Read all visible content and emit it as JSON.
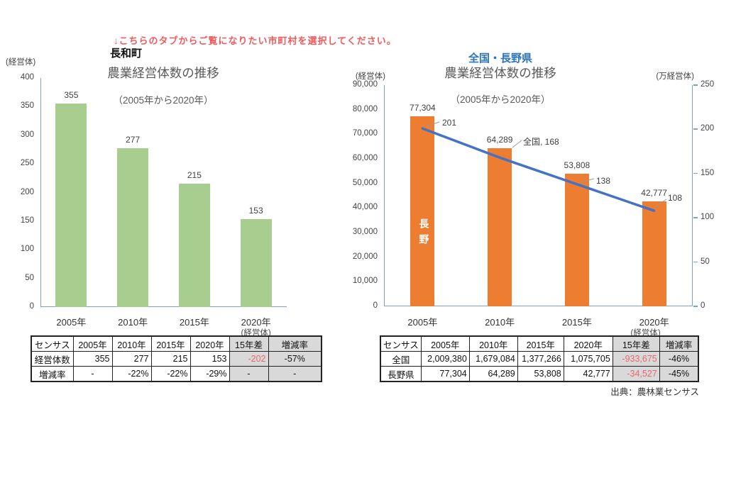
{
  "instruction_text": "↓こちらのタブからご覧になりたい市町村を選択してください。",
  "source_text": "出典：農林業センサス",
  "colors": {
    "instruction_red": "#F05A5A",
    "negative_red": "#E8696B",
    "bar_green": "#A7CE8E",
    "bar_orange": "#ED7D31",
    "line_blue": "#4472C4",
    "axis_blue": "#7FA0CC",
    "leader_gray": "#9A9A9A",
    "title_gray": "#595959",
    "header_gray": "#D9D9D9",
    "national_blue": "#2E75B6"
  },
  "left": {
    "tab_title": "長和町",
    "table": {
      "headers": [
        "センサス",
        "2005年",
        "2010年",
        "2015年",
        "2020年",
        "15年差",
        "増減率"
      ],
      "rows": [
        [
          "経営体数",
          "355",
          "277",
          "215",
          "153",
          "-202",
          "-57%"
        ],
        [
          "増減率",
          "-",
          "-22%",
          "-22%",
          "-29%",
          "-",
          "-"
        ]
      ]
    }
  },
  "right": {
    "tab_title": "全国・長野県",
    "table": {
      "headers": [
        "センサス",
        "2005年",
        "2010年",
        "2015年",
        "2020年",
        "15年差",
        "増減率"
      ],
      "rows": [
        [
          "全国",
          "2,009,380",
          "1,679,084",
          "1,377,266",
          "1,075,705",
          "-933,675",
          "-46%"
        ],
        [
          "長野県",
          "77,304",
          "64,289",
          "53,808",
          "42,777",
          "-34,527",
          "-45%"
        ]
      ]
    }
  },
  "chart_data": [
    {
      "id": "nagawa",
      "type": "bar",
      "title": "農業経営体数の推移",
      "subtitle": "（2005年から2020年）",
      "unit_left": "(経営体)",
      "axis_note": "(経営体)",
      "categories": [
        "2005年",
        "2010年",
        "2015年",
        "2020年"
      ],
      "values": [
        355,
        277,
        215,
        153
      ],
      "data_labels": [
        "355",
        "277",
        "215",
        "153"
      ],
      "ylim": [
        0,
        400
      ],
      "yticks": [
        "400",
        "350",
        "300",
        "250",
        "200",
        "150",
        "100",
        "50",
        "0"
      ],
      "bar_color": "#A7CE8E",
      "grid": false,
      "legend": "none"
    },
    {
      "id": "national-nagano",
      "type": "bar+line",
      "title": "農業経営体数の推移",
      "subtitle": "（2005年から2020年）",
      "unit_left": "(経営体)",
      "unit_right": "(万経営体)",
      "axis_note": "(経営体)",
      "categories": [
        "2005年",
        "2010年",
        "2015年",
        "2020年"
      ],
      "series": [
        {
          "name": "長野",
          "chart": "bar",
          "axis": "left",
          "values": [
            77304,
            64289,
            53808,
            42777
          ],
          "data_labels": [
            "77,304",
            "64,289",
            "53,808",
            "42,777"
          ],
          "color": "#ED7D31",
          "in_bar_label": "長野"
        },
        {
          "name": "全国",
          "chart": "line",
          "axis": "right",
          "values": [
            201,
            168,
            138,
            108
          ],
          "point_labels": [
            "201",
            "全国, 168",
            "138",
            "108"
          ],
          "color": "#4472C4"
        }
      ],
      "ylim_left": [
        0,
        90000
      ],
      "yticks_left": [
        "90,000",
        "80,000",
        "70,000",
        "60,000",
        "50,000",
        "40,000",
        "30,000",
        "20,000",
        "10,000",
        "0"
      ],
      "ylim_right": [
        0,
        250
      ],
      "yticks_right": [
        "250",
        "200",
        "150",
        "100",
        "50",
        "0"
      ],
      "grid": false,
      "legend": "none"
    }
  ]
}
